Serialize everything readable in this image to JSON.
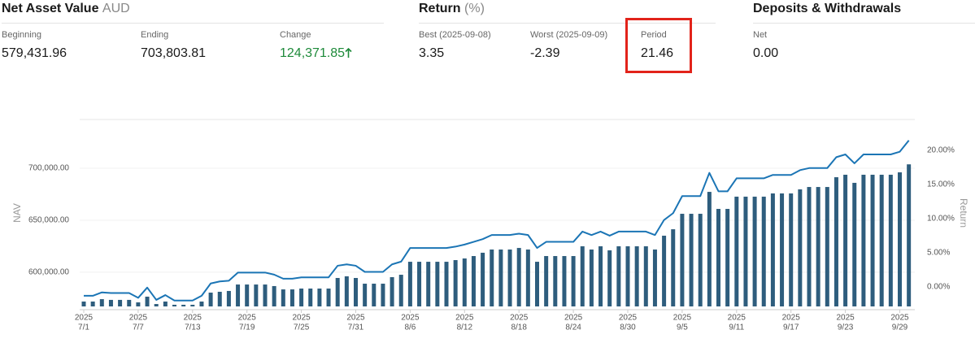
{
  "summary": [
    {
      "title": "Net Asset Value",
      "unit": "AUD",
      "items": [
        {
          "label": "Beginning",
          "value": "579,431.96"
        },
        {
          "label": "Ending",
          "value": "703,803.81"
        },
        {
          "label": "Change",
          "value": "124,371.85"
        }
      ]
    },
    {
      "title": "Return",
      "unit": "(%)",
      "items": [
        {
          "label": "Best (2025-09-08)",
          "value": "3.35"
        },
        {
          "label": "Worst (2025-09-09)",
          "value": "-2.39"
        },
        {
          "label": "Period",
          "value": "21.46"
        }
      ]
    },
    {
      "title": "Deposits & Withdrawals",
      "items": [
        {
          "label": "Net",
          "value": "0.00"
        }
      ]
    }
  ],
  "chart_data": {
    "type": "combo",
    "y_label": "NAV",
    "y2_label": "Return",
    "category_year": "2025",
    "categories": [
      "7/1",
      null,
      null,
      null,
      null,
      null,
      "7/7",
      null,
      null,
      null,
      null,
      null,
      "7/13",
      null,
      null,
      null,
      null,
      null,
      "7/19",
      null,
      null,
      null,
      null,
      null,
      "7/25",
      null,
      null,
      null,
      null,
      null,
      "7/31",
      null,
      null,
      null,
      null,
      null,
      "8/6",
      null,
      null,
      null,
      null,
      null,
      "8/12",
      null,
      null,
      null,
      null,
      null,
      "8/18",
      null,
      null,
      null,
      null,
      null,
      "8/24",
      null,
      null,
      null,
      null,
      null,
      "8/30",
      null,
      null,
      null,
      null,
      null,
      "9/5",
      null,
      null,
      null,
      null,
      null,
      "9/11",
      null,
      null,
      null,
      null,
      null,
      "9/17",
      null,
      null,
      null,
      null,
      null,
      "9/23",
      null,
      null,
      null,
      null,
      null,
      "9/29",
      null
    ],
    "series": [
      {
        "type": "bar",
        "color": "#2e5d7d",
        "values": [
          571700,
          571700,
          574000,
          573300,
          573300,
          573300,
          570900,
          576400,
          569300,
          571700,
          568600,
          568600,
          568600,
          571700,
          580300,
          581100,
          581900,
          588100,
          588100,
          588100,
          588100,
          586600,
          583400,
          583400,
          584200,
          584200,
          584200,
          584200,
          594400,
          596000,
          594400,
          588900,
          588900,
          588900,
          595200,
          597500,
          610000,
          610000,
          610000,
          610000,
          610000,
          611600,
          613200,
          615500,
          618700,
          621800,
          621800,
          621800,
          623300,
          621800,
          610000,
          615500,
          615500,
          615500,
          615500,
          624900,
          621800,
          624900,
          621000,
          624900,
          624900,
          624900,
          624900,
          621800,
          635100,
          641300,
          656200,
          656200,
          656200,
          677300,
          660900,
          660900,
          672700,
          672700,
          672700,
          672700,
          675800,
          675800,
          675800,
          679700,
          682000,
          682000,
          682000,
          691400,
          693800,
          686000,
          693800,
          693800,
          693800,
          693800,
          696100,
          703800
        ]
      },
      {
        "type": "line",
        "axis": "y2",
        "color": "#1b75b5",
        "values": [
          -1.3,
          -1.3,
          -0.8,
          -0.9,
          -0.9,
          -0.9,
          -1.6,
          -0.1,
          -1.9,
          -1.2,
          -2.0,
          -2.0,
          -2.0,
          -1.3,
          0.5,
          0.8,
          0.9,
          2.1,
          2.1,
          2.1,
          2.1,
          1.8,
          1.2,
          1.2,
          1.4,
          1.4,
          1.4,
          1.4,
          3.1,
          3.3,
          3.1,
          2.2,
          2.2,
          2.2,
          3.3,
          3.7,
          5.7,
          5.7,
          5.7,
          5.7,
          5.7,
          5.9,
          6.2,
          6.6,
          7.0,
          7.6,
          7.6,
          7.6,
          7.8,
          7.6,
          5.7,
          6.6,
          6.6,
          6.6,
          6.6,
          8.1,
          7.6,
          8.1,
          7.5,
          8.1,
          8.1,
          8.1,
          8.1,
          7.6,
          9.8,
          10.8,
          13.3,
          13.3,
          13.3,
          16.7,
          14.0,
          14.0,
          15.9,
          15.9,
          15.9,
          15.9,
          16.4,
          16.4,
          16.4,
          17.1,
          17.4,
          17.4,
          17.4,
          19.0,
          19.4,
          18.1,
          19.4,
          19.4,
          19.4,
          19.4,
          19.8,
          21.46
        ]
      }
    ],
    "ylim": [
      567000,
      747000
    ],
    "yticks": [
      {
        "value": 600000,
        "label": "600,000.00"
      },
      {
        "value": 650000,
        "label": "650,000.00"
      },
      {
        "value": 700000,
        "label": "700,000.00"
      }
    ],
    "y2lim": [
      -2.86,
      24.52
    ],
    "y2ticks": [
      {
        "value": 0,
        "label": "0.00%"
      },
      {
        "value": 5,
        "label": "5.00%"
      },
      {
        "value": 10,
        "label": "10.00%"
      },
      {
        "value": 15,
        "label": "15.00%"
      },
      {
        "value": 20,
        "label": "20.00%"
      }
    ],
    "grid": true
  }
}
